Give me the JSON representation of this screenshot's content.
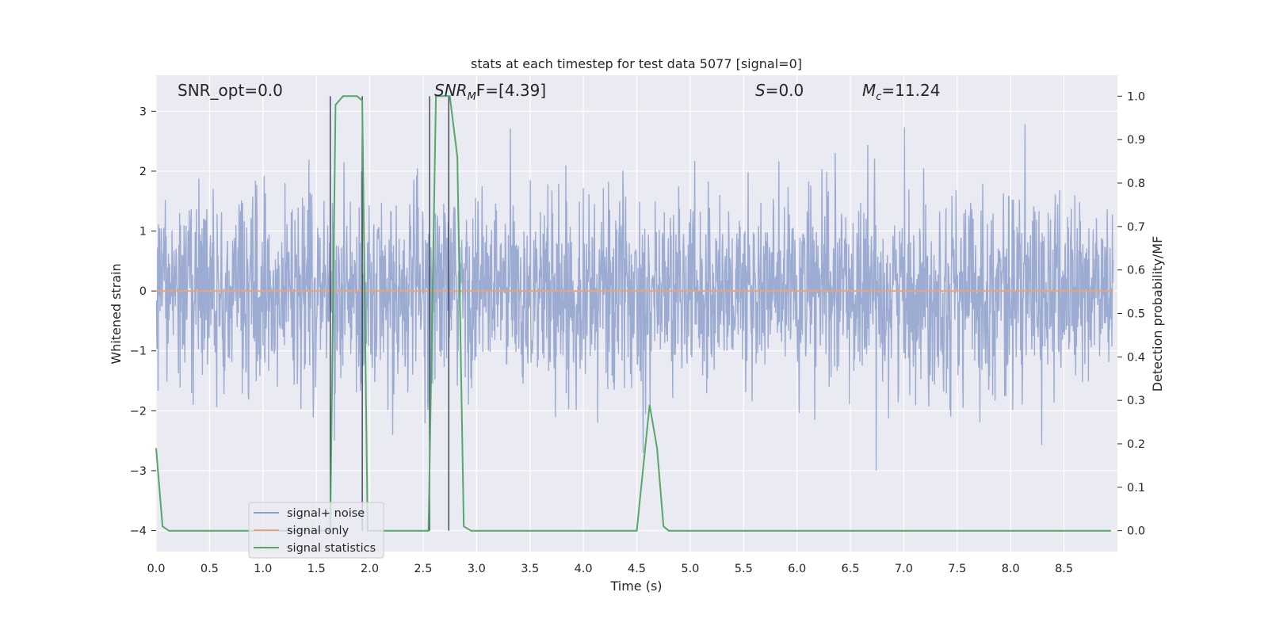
{
  "chart_data": {
    "type": "line",
    "title": "stats at each timestep for test data 5077 [signal=0]",
    "xlabel": "Time (s)",
    "ylabel": "Whitened strain",
    "y2label": "Detection probability/MF",
    "xlim": [
      0.0,
      9.0
    ],
    "ylim": [
      -4.35,
      3.6
    ],
    "y2lim": [
      -0.048,
      1.048
    ],
    "grid": true,
    "legend_position": "lower-left",
    "x_ticks": [
      "0.0",
      "0.5",
      "1.0",
      "1.5",
      "2.0",
      "2.5",
      "3.0",
      "3.5",
      "4.0",
      "4.5",
      "5.0",
      "5.5",
      "6.0",
      "6.5",
      "7.0",
      "7.5",
      "8.0",
      "8.5"
    ],
    "y_ticks": [
      "3",
      "2",
      "1",
      "0",
      "−1",
      "−2",
      "−3",
      "−4"
    ],
    "y_tick_values": [
      3,
      2,
      1,
      0,
      -1,
      -2,
      -3,
      -4
    ],
    "y2_ticks": [
      "1.0",
      "0.9",
      "0.8",
      "0.7",
      "0.6",
      "0.5",
      "0.4",
      "0.3",
      "0.2",
      "0.1",
      "0.0"
    ],
    "y2_tick_values": [
      1.0,
      0.9,
      0.8,
      0.7,
      0.6,
      0.5,
      0.4,
      0.3,
      0.2,
      0.1,
      0.0
    ],
    "annotations": {
      "snr_opt": "SNR_opt=0.0",
      "snr_mf_sym": "SNR",
      "snr_mf_sub": "M",
      "snr_mf_rest": "F=[4.39]",
      "s_sym": "S",
      "s_rest": "=0.0",
      "mc_sym": "M",
      "mc_sub": "c",
      "mc_rest": "=11.24"
    },
    "series": [
      {
        "name": "signal+ noise",
        "color": "#8da0cb",
        "description_axis": "left",
        "amplitude_envelope": {
          "typical_abs": 1.8,
          "max_abs": 4.0
        }
      },
      {
        "name": "signal only",
        "color": "#e4a57f",
        "description_axis": "left",
        "constant": 0.0
      },
      {
        "name": "signal statistics",
        "color": "#55a868",
        "description_axis": "right",
        "x": [
          0.0,
          0.06,
          0.12,
          1.25,
          1.63,
          1.68,
          1.75,
          1.88,
          1.93,
          1.98,
          2.05,
          2.55,
          2.62,
          2.75,
          2.82,
          2.88,
          2.95,
          4.5,
          4.62,
          4.69,
          4.75,
          4.8,
          9.0
        ],
        "values": [
          0.19,
          0.01,
          0.0,
          0.0,
          0.0,
          0.98,
          1.0,
          1.0,
          0.99,
          0.0,
          0.0,
          0.0,
          1.0,
          1.0,
          0.86,
          0.01,
          0.0,
          0.0,
          0.29,
          0.19,
          0.01,
          0.0,
          0.0
        ]
      }
    ],
    "vertical_markers": [
      1.63,
      1.93,
      2.56,
      2.74
    ]
  }
}
